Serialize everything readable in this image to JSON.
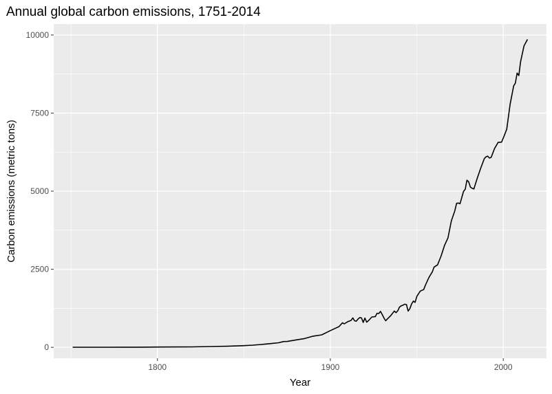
{
  "chart_data": {
    "type": "line",
    "title": "Annual global carbon emissions, 1751-2014",
    "xlabel": "Year",
    "ylabel": "Carbon emissions (metric tons)",
    "xlim": [
      1740,
      2025
    ],
    "ylim": [
      -350,
      10350
    ],
    "x_ticks": [
      1800,
      1900,
      2000
    ],
    "x_tick_labels": [
      "1800",
      "1900",
      "2000"
    ],
    "y_ticks": [
      0,
      2500,
      5000,
      7500,
      10000
    ],
    "y_tick_labels": [
      "0",
      "2500",
      "5000",
      "7500",
      "10000"
    ],
    "grid": true,
    "legend": "none",
    "colors": {
      "panel": "#EBEBEB",
      "grid": "#FFFFFF",
      "line": "#000000"
    },
    "series": [
      {
        "x": [
          1751,
          1760,
          1770,
          1780,
          1790,
          1800,
          1810,
          1820,
          1830,
          1840,
          1850,
          1855,
          1860,
          1865,
          1870,
          1873,
          1875,
          1880,
          1885,
          1890,
          1895,
          1900,
          1903,
          1905,
          1907,
          1908,
          1910,
          1912,
          1913,
          1914,
          1915,
          1916,
          1917,
          1918,
          1919,
          1920,
          1921,
          1922,
          1924,
          1926,
          1927,
          1928,
          1929,
          1930,
          1931,
          1932,
          1933,
          1935,
          1937,
          1938,
          1939,
          1940,
          1941,
          1942,
          1943,
          1944,
          1945,
          1946,
          1947,
          1948,
          1949,
          1950,
          1952,
          1954,
          1955,
          1957,
          1959,
          1960,
          1962,
          1964,
          1966,
          1968,
          1970,
          1972,
          1973,
          1974,
          1975,
          1977,
          1978,
          1979,
          1980,
          1981,
          1982,
          1983,
          1985,
          1987,
          1989,
          1990,
          1991,
          1992,
          1993,
          1995,
          1997,
          1999,
          2000,
          2002,
          2004,
          2006,
          2007,
          2008,
          2009,
          2010,
          2012,
          2014
        ],
        "y": [
          3,
          3,
          3,
          4,
          5,
          8,
          10,
          14,
          24,
          33,
          54,
          68,
          91,
          117,
          146,
          185,
          188,
          236,
          279,
          356,
          398,
          534,
          612,
          663,
          786,
          750,
          819,
          864,
          943,
          850,
          836,
          905,
          953,
          940,
          797,
          935,
          806,
          850,
          970,
          985,
          1090,
          1080,
          1150,
          1050,
          940,
          850,
          910,
          1020,
          1160,
          1110,
          1170,
          1290,
          1330,
          1350,
          1380,
          1370,
          1160,
          1240,
          1390,
          1480,
          1440,
          1630,
          1800,
          1850,
          1990,
          2240,
          2420,
          2570,
          2640,
          2920,
          3260,
          3500,
          4050,
          4370,
          4610,
          4620,
          4600,
          4990,
          5060,
          5350,
          5300,
          5130,
          5090,
          5070,
          5420,
          5740,
          6040,
          6100,
          6120,
          6060,
          6080,
          6370,
          6560,
          6570,
          6700,
          6980,
          7790,
          8370,
          8460,
          8780,
          8700,
          9140,
          9650,
          9860
        ]
      }
    ]
  }
}
